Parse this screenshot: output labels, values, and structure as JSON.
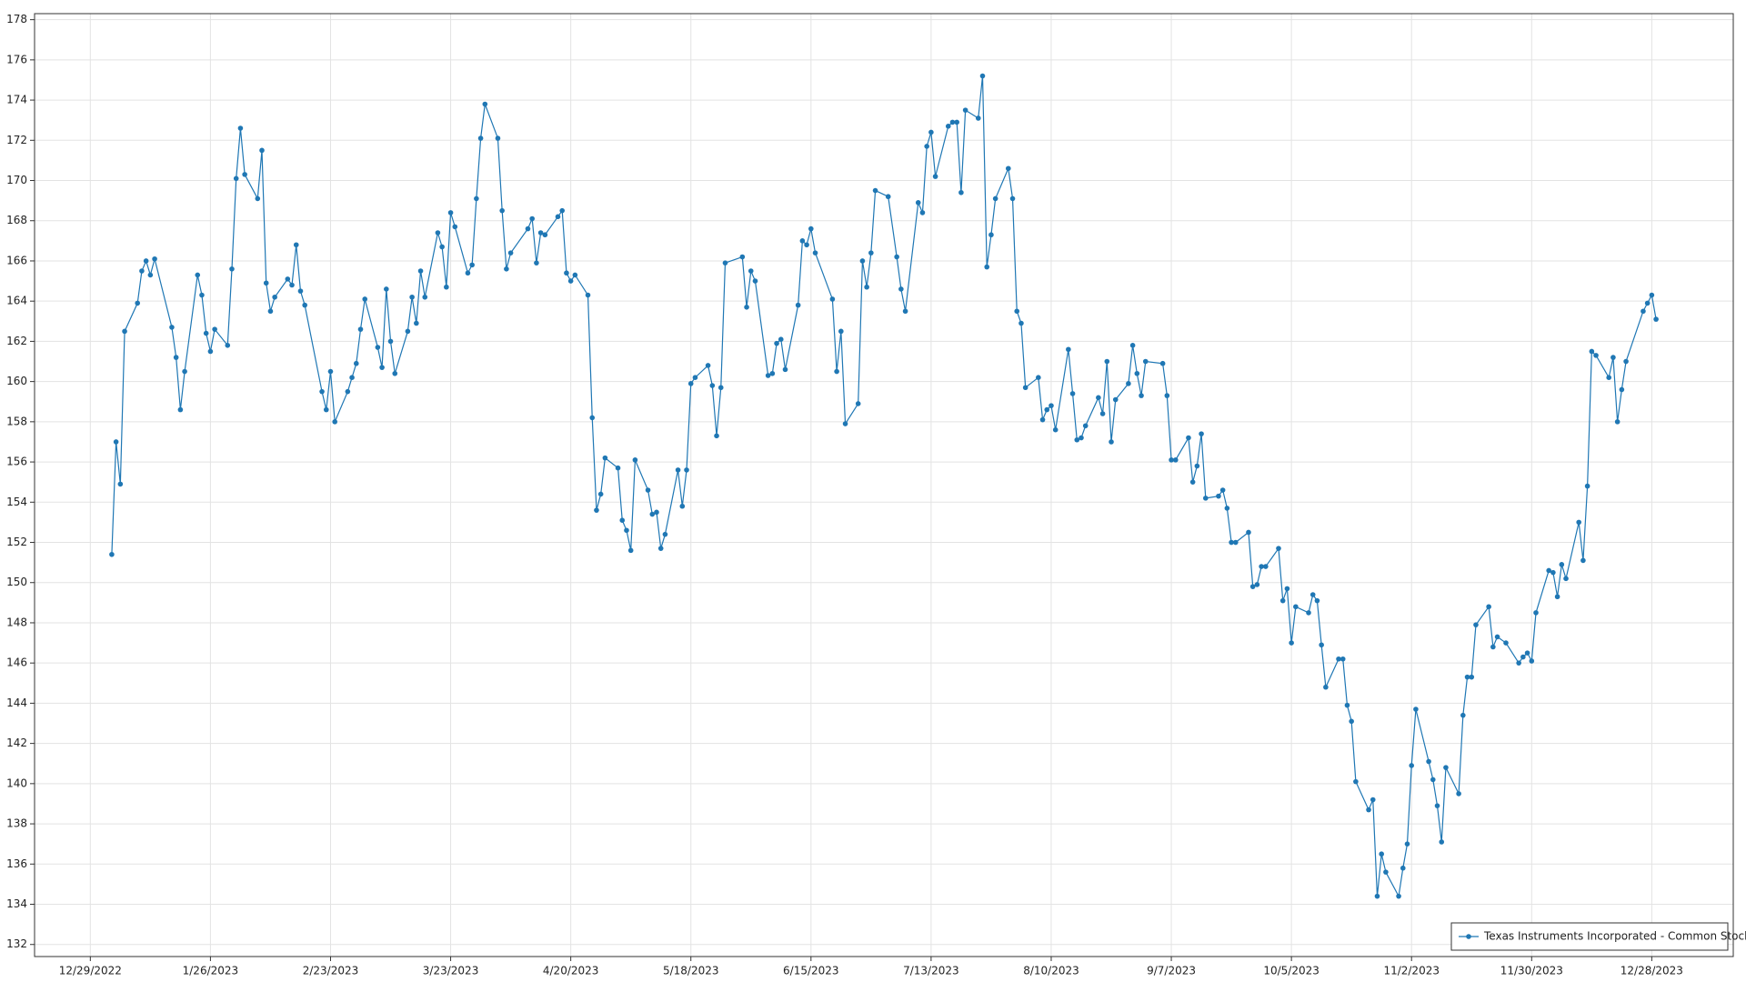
{
  "chart_data": {
    "type": "line",
    "x": [
      "1/3/2023",
      "1/4/2023",
      "1/5/2023",
      "1/6/2023",
      "1/9/2023",
      "1/10/2023",
      "1/11/2023",
      "1/12/2023",
      "1/13/2023",
      "1/17/2023",
      "1/18/2023",
      "1/19/2023",
      "1/20/2023",
      "1/23/2023",
      "1/24/2023",
      "1/25/2023",
      "1/26/2023",
      "1/27/2023",
      "1/30/2023",
      "1/31/2023",
      "2/1/2023",
      "2/2/2023",
      "2/3/2023",
      "2/6/2023",
      "2/7/2023",
      "2/8/2023",
      "2/9/2023",
      "2/10/2023",
      "2/13/2023",
      "2/14/2023",
      "2/15/2023",
      "2/16/2023",
      "2/17/2023",
      "2/21/2023",
      "2/22/2023",
      "2/23/2023",
      "2/24/2023",
      "2/27/2023",
      "2/28/2023",
      "3/1/2023",
      "3/2/2023",
      "3/3/2023",
      "3/6/2023",
      "3/7/2023",
      "3/8/2023",
      "3/9/2023",
      "3/10/2023",
      "3/13/2023",
      "3/14/2023",
      "3/15/2023",
      "3/16/2023",
      "3/17/2023",
      "3/20/2023",
      "3/21/2023",
      "3/22/2023",
      "3/23/2023",
      "3/24/2023",
      "3/27/2023",
      "3/28/2023",
      "3/29/2023",
      "3/30/2023",
      "3/31/2023",
      "4/3/2023",
      "4/4/2023",
      "4/5/2023",
      "4/6/2023",
      "4/10/2023",
      "4/11/2023",
      "4/12/2023",
      "4/13/2023",
      "4/14/2023",
      "4/17/2023",
      "4/18/2023",
      "4/19/2023",
      "4/20/2023",
      "4/21/2023",
      "4/24/2023",
      "4/25/2023",
      "4/26/2023",
      "4/27/2023",
      "4/28/2023",
      "5/1/2023",
      "5/2/2023",
      "5/3/2023",
      "5/4/2023",
      "5/5/2023",
      "5/8/2023",
      "5/9/2023",
      "5/10/2023",
      "5/11/2023",
      "5/12/2023",
      "5/15/2023",
      "5/16/2023",
      "5/17/2023",
      "5/18/2023",
      "5/19/2023",
      "5/22/2023",
      "5/23/2023",
      "5/24/2023",
      "5/25/2023",
      "5/26/2023",
      "5/30/2023",
      "5/31/2023",
      "6/1/2023",
      "6/2/2023",
      "6/5/2023",
      "6/6/2023",
      "6/7/2023",
      "6/8/2023",
      "6/9/2023",
      "6/12/2023",
      "6/13/2023",
      "6/14/2023",
      "6/15/2023",
      "6/16/2023",
      "6/20/2023",
      "6/21/2023",
      "6/22/2023",
      "6/23/2023",
      "6/26/2023",
      "6/27/2023",
      "6/28/2023",
      "6/29/2023",
      "6/30/2023",
      "7/3/2023",
      "7/5/2023",
      "7/6/2023",
      "7/7/2023",
      "7/10/2023",
      "7/11/2023",
      "7/12/2023",
      "7/13/2023",
      "7/14/2023",
      "7/17/2023",
      "7/18/2023",
      "7/19/2023",
      "7/20/2023",
      "7/21/2023",
      "7/24/2023",
      "7/25/2023",
      "7/26/2023",
      "7/27/2023",
      "7/28/2023",
      "7/31/2023",
      "8/1/2023",
      "8/2/2023",
      "8/3/2023",
      "8/4/2023",
      "8/7/2023",
      "8/8/2023",
      "8/9/2023",
      "8/10/2023",
      "8/11/2023",
      "8/14/2023",
      "8/15/2023",
      "8/16/2023",
      "8/17/2023",
      "8/18/2023",
      "8/21/2023",
      "8/22/2023",
      "8/23/2023",
      "8/24/2023",
      "8/25/2023",
      "8/28/2023",
      "8/29/2023",
      "8/30/2023",
      "8/31/2023",
      "9/1/2023",
      "9/5/2023",
      "9/6/2023",
      "9/7/2023",
      "9/8/2023",
      "9/11/2023",
      "9/12/2023",
      "9/13/2023",
      "9/14/2023",
      "9/15/2023",
      "9/18/2023",
      "9/19/2023",
      "9/20/2023",
      "9/21/2023",
      "9/22/2023",
      "9/25/2023",
      "9/26/2023",
      "9/27/2023",
      "9/28/2023",
      "9/29/2023",
      "10/2/2023",
      "10/3/2023",
      "10/4/2023",
      "10/5/2023",
      "10/6/2023",
      "10/9/2023",
      "10/10/2023",
      "10/11/2023",
      "10/12/2023",
      "10/13/2023",
      "10/16/2023",
      "10/17/2023",
      "10/18/2023",
      "10/19/2023",
      "10/20/2023",
      "10/23/2023",
      "10/24/2023",
      "10/25/2023",
      "10/26/2023",
      "10/27/2023",
      "10/30/2023",
      "10/31/2023",
      "11/1/2023",
      "11/2/2023",
      "11/3/2023",
      "11/6/2023",
      "11/7/2023",
      "11/8/2023",
      "11/9/2023",
      "11/10/2023",
      "11/13/2023",
      "11/14/2023",
      "11/15/2023",
      "11/16/2023",
      "11/17/2023",
      "11/20/2023",
      "11/21/2023",
      "11/22/2023",
      "11/24/2023",
      "11/27/2023",
      "11/28/2023",
      "11/29/2023",
      "11/30/2023",
      "12/1/2023",
      "12/4/2023",
      "12/5/2023",
      "12/6/2023",
      "12/7/2023",
      "12/8/2023",
      "12/11/2023",
      "12/12/2023",
      "12/13/2023",
      "12/14/2023",
      "12/15/2023",
      "12/18/2023",
      "12/19/2023",
      "12/20/2023",
      "12/21/2023",
      "12/22/2023",
      "12/26/2023",
      "12/27/2023",
      "12/28/2023",
      "12/29/2023"
    ],
    "series": [
      {
        "name": "Texas Instruments Incorporated - Common Stock",
        "color": "#1f77b4",
        "values": [
          151.4,
          157.0,
          154.9,
          162.5,
          163.9,
          165.5,
          166.0,
          165.3,
          166.1,
          162.7,
          161.2,
          158.6,
          160.5,
          165.3,
          164.3,
          162.4,
          161.5,
          162.6,
          161.8,
          165.6,
          170.1,
          172.6,
          170.3,
          169.1,
          171.5,
          164.9,
          163.5,
          164.2,
          165.1,
          164.8,
          166.8,
          164.5,
          163.8,
          159.5,
          158.6,
          160.5,
          158.0,
          159.5,
          160.2,
          160.9,
          162.6,
          164.1,
          161.7,
          160.7,
          164.6,
          162.0,
          160.4,
          162.5,
          164.2,
          162.9,
          165.5,
          164.2,
          167.4,
          166.7,
          164.7,
          168.4,
          167.7,
          165.4,
          165.8,
          169.1,
          172.1,
          173.8,
          172.1,
          168.5,
          165.6,
          166.4,
          167.6,
          168.1,
          165.9,
          167.4,
          167.3,
          168.2,
          168.5,
          165.4,
          165.0,
          165.3,
          164.3,
          158.2,
          153.6,
          154.4,
          156.2,
          155.7,
          153.1,
          152.6,
          151.6,
          156.1,
          154.6,
          153.4,
          153.5,
          151.7,
          152.4,
          155.6,
          153.8,
          155.6,
          159.9,
          160.2,
          160.8,
          159.8,
          157.3,
          159.7,
          165.9,
          166.2,
          163.7,
          165.5,
          165.0,
          160.3,
          160.4,
          161.9,
          162.1,
          160.6,
          163.8,
          167.0,
          166.8,
          167.6,
          166.4,
          164.1,
          160.5,
          162.5,
          157.9,
          158.9,
          166.0,
          164.7,
          166.4,
          169.5,
          169.2,
          166.2,
          164.6,
          163.5,
          168.9,
          168.4,
          171.7,
          172.4,
          170.2,
          172.7,
          172.9,
          172.9,
          169.4,
          173.5,
          173.1,
          175.2,
          165.7,
          167.3,
          169.1,
          170.6,
          169.1,
          163.5,
          162.9,
          159.7,
          160.2,
          158.1,
          158.6,
          158.8,
          157.6,
          161.6,
          159.4,
          157.1,
          157.2,
          157.8,
          159.2,
          158.4,
          161.0,
          157.0,
          159.1,
          159.9,
          161.8,
          160.4,
          159.3,
          161.0,
          160.9,
          159.3,
          156.1,
          156.1,
          157.2,
          155.0,
          155.8,
          157.4,
          154.2,
          154.3,
          154.6,
          153.7,
          152.0,
          152.0,
          152.5,
          149.8,
          149.9,
          150.8,
          150.8,
          151.7,
          149.1,
          149.7,
          147.0,
          148.8,
          148.5,
          149.4,
          149.1,
          146.9,
          144.8,
          146.2,
          146.2,
          143.9,
          143.1,
          140.1,
          138.7,
          139.2,
          134.4,
          136.5,
          135.6,
          134.4,
          135.8,
          137.0,
          140.9,
          143.7,
          141.1,
          140.2,
          138.9,
          137.1,
          140.8,
          139.5,
          143.4,
          145.3,
          145.3,
          147.9,
          148.8,
          146.8,
          147.3,
          147.0,
          146.0,
          146.3,
          146.5,
          146.1,
          148.5,
          150.6,
          150.5,
          149.3,
          150.9,
          150.2,
          153.0,
          151.1,
          154.8,
          161.5,
          161.3,
          160.2,
          161.2,
          158.0,
          159.6,
          161.0,
          163.5,
          163.9,
          164.3,
          163.1
        ]
      }
    ],
    "xlim": [
      "12/16/2022",
      "1/16/2024"
    ],
    "xticks": [
      "12/29/2022",
      "1/26/2023",
      "2/23/2023",
      "3/23/2023",
      "4/20/2023",
      "5/18/2023",
      "6/15/2023",
      "7/13/2023",
      "8/10/2023",
      "9/7/2023",
      "10/5/2023",
      "11/2/2023",
      "11/30/2023",
      "12/28/2023"
    ],
    "ylim": [
      131.4,
      178.3
    ],
    "yticks": [
      132,
      134,
      136,
      138,
      140,
      142,
      144,
      146,
      148,
      150,
      152,
      154,
      156,
      158,
      160,
      162,
      164,
      166,
      168,
      170,
      172,
      174,
      176,
      178
    ],
    "grid": true,
    "markers": true,
    "legend": "lower right"
  }
}
